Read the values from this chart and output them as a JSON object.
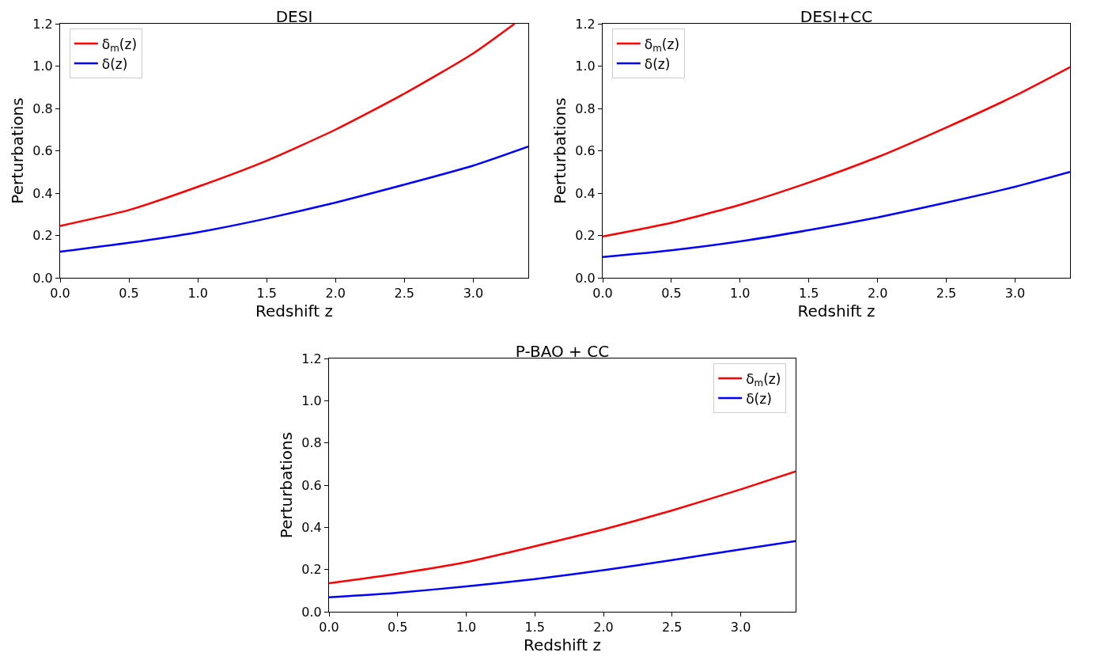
{
  "chart_data": [
    {
      "type": "line",
      "title": "DESI",
      "xlabel": "Redshift z",
      "ylabel": "Perturbations",
      "xlim": [
        0,
        3.4
      ],
      "ylim": [
        0,
        1.2
      ],
      "xticks": [
        {
          "value": 0,
          "label": "0.0"
        },
        {
          "value": 0.5,
          "label": "0.5"
        },
        {
          "value": 1,
          "label": "1.0"
        },
        {
          "value": 1.5,
          "label": "1.5"
        },
        {
          "value": 2,
          "label": "2.0"
        },
        {
          "value": 2.5,
          "label": "2.5"
        },
        {
          "value": 3,
          "label": "3.0"
        }
      ],
      "yticks": [
        {
          "value": 0,
          "label": "0.0"
        },
        {
          "value": 0.2,
          "label": "0.2"
        },
        {
          "value": 0.4,
          "label": "0.4"
        },
        {
          "value": 0.6,
          "label": "0.6"
        },
        {
          "value": 0.8,
          "label": "0.8"
        },
        {
          "value": 1,
          "label": "1.0"
        },
        {
          "value": 1.2,
          "label": "1.2"
        }
      ],
      "grid": false,
      "legend": "top left",
      "line_style": "solid",
      "x": [
        0,
        0.5,
        1,
        1.5,
        2,
        2.5,
        3,
        3.4
      ],
      "series": [
        {
          "name": "δ$_{m}$(z)",
          "color": "#ff0000",
          "x": [
            0,
            0.5,
            1,
            1.5,
            2,
            2.5,
            3,
            3.3
          ],
          "values": [
            0.245,
            0.32,
            0.43,
            0.553,
            0.7,
            0.87,
            1.06,
            1.2
          ]
        },
        {
          "name": "δ(z)",
          "color": "#0000ff",
          "values": [
            0.123,
            0.165,
            0.215,
            0.28,
            0.355,
            0.44,
            0.53,
            0.62
          ]
        }
      ]
    },
    {
      "type": "line",
      "title": "DESI+CC",
      "xlabel": "Redshift z",
      "ylabel": "Perturbations",
      "xlim": [
        0,
        3.4
      ],
      "ylim": [
        0,
        1.2
      ],
      "xticks": [
        {
          "value": 0,
          "label": "0.0"
        },
        {
          "value": 0.5,
          "label": "0.5"
        },
        {
          "value": 1,
          "label": "1.0"
        },
        {
          "value": 1.5,
          "label": "1.5"
        },
        {
          "value": 2,
          "label": "2.0"
        },
        {
          "value": 2.5,
          "label": "2.5"
        },
        {
          "value": 3,
          "label": "3.0"
        }
      ],
      "yticks": [
        {
          "value": 0,
          "label": "0.0"
        },
        {
          "value": 0.2,
          "label": "0.2"
        },
        {
          "value": 0.4,
          "label": "0.4"
        },
        {
          "value": 0.6,
          "label": "0.6"
        },
        {
          "value": 0.8,
          "label": "0.8"
        },
        {
          "value": 1,
          "label": "1.0"
        },
        {
          "value": 1.2,
          "label": "1.2"
        }
      ],
      "grid": false,
      "legend": "top left",
      "line_style": "solid",
      "x": [
        0,
        0.5,
        1,
        1.5,
        2,
        2.5,
        3,
        3.4
      ],
      "series": [
        {
          "name": "δ$_{m}$(z)",
          "color": "#ff0000",
          "values": [
            0.195,
            0.26,
            0.345,
            0.45,
            0.57,
            0.71,
            0.86,
            0.995
          ]
        },
        {
          "name": "δ(z)",
          "color": "#0000ff",
          "values": [
            0.098,
            0.13,
            0.172,
            0.225,
            0.285,
            0.355,
            0.43,
            0.5
          ]
        }
      ]
    },
    {
      "type": "line",
      "title": "P-BAO + CC",
      "xlabel": "Redshift z",
      "ylabel": "Perturbations",
      "xlim": [
        0,
        3.4
      ],
      "ylim": [
        0,
        1.2
      ],
      "xticks": [
        {
          "value": 0,
          "label": "0.0"
        },
        {
          "value": 0.5,
          "label": "0.5"
        },
        {
          "value": 1,
          "label": "1.0"
        },
        {
          "value": 1.5,
          "label": "1.5"
        },
        {
          "value": 2,
          "label": "2.0"
        },
        {
          "value": 2.5,
          "label": "2.5"
        },
        {
          "value": 3,
          "label": "3.0"
        }
      ],
      "yticks": [
        {
          "value": 0,
          "label": "0.0"
        },
        {
          "value": 0.2,
          "label": "0.2"
        },
        {
          "value": 0.4,
          "label": "0.4"
        },
        {
          "value": 0.6,
          "label": "0.6"
        },
        {
          "value": 0.8,
          "label": "0.8"
        },
        {
          "value": 1,
          "label": "1.0"
        },
        {
          "value": 1.2,
          "label": "1.2"
        }
      ],
      "grid": false,
      "legend": "top right",
      "line_style": "solid",
      "x": [
        0,
        0.5,
        1,
        1.5,
        2,
        2.5,
        3,
        3.4
      ],
      "series": [
        {
          "name": "δ$_{m}$(z)",
          "color": "#ff0000",
          "values": [
            0.135,
            0.18,
            0.235,
            0.31,
            0.39,
            0.48,
            0.58,
            0.665
          ]
        },
        {
          "name": "δ(z)",
          "color": "#0000ff",
          "values": [
            0.068,
            0.09,
            0.12,
            0.155,
            0.197,
            0.245,
            0.295,
            0.335
          ]
        }
      ]
    }
  ]
}
